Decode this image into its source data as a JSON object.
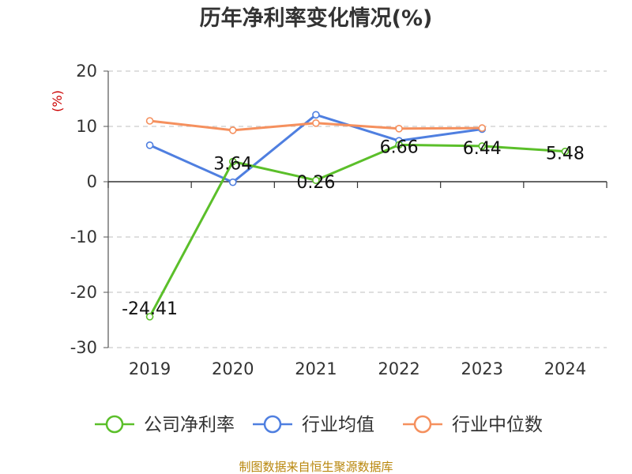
{
  "chart_data": {
    "type": "line",
    "title": "历年净利率变化情况(%)",
    "ylabel": "(%)",
    "xlabel": "",
    "categories": [
      "2019",
      "2020",
      "2021",
      "2022",
      "2023",
      "2024"
    ],
    "ylim": [
      -30,
      20
    ],
    "yticks": [
      "20",
      "10",
      "0",
      "-10",
      "-20",
      "-30"
    ],
    "grid": true,
    "legend_position": "bottom",
    "series": [
      {
        "name": "公司净利率",
        "color": "#5bbf2a",
        "values": [
          -24.41,
          3.64,
          0.26,
          6.66,
          6.44,
          5.48
        ],
        "labels": [
          "-24.41",
          "3.64",
          "0.26",
          "6.66",
          "6.44",
          "5.48"
        ]
      },
      {
        "name": "行业均值",
        "color": "#4f7fe0",
        "values": [
          6.6,
          -0.1,
          12.1,
          7.4,
          9.5,
          null
        ]
      },
      {
        "name": "行业中位数",
        "color": "#f5905e",
        "values": [
          11.0,
          9.3,
          10.6,
          9.6,
          9.7,
          null
        ]
      }
    ],
    "source": "制图数据来自恒生聚源数据库"
  }
}
